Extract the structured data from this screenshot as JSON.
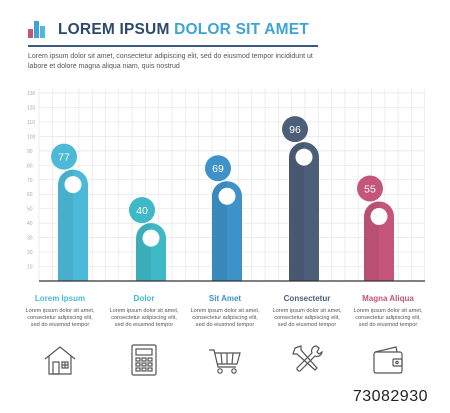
{
  "header": {
    "title_part1": "LOREM IPSUM",
    "title_part2": "DOLOR SIT AMET",
    "intro": "Lorem ipsum dolor sit amet, consectetur adipiscing elit, sed do eiusmod tempor incididunt ut labore et dolore magna aliqua niam, quis nostrud",
    "logo_icon": "bar-chart-logo-icon"
  },
  "colors": {
    "title_dark": "#2d4a6a",
    "title_light": "#3fa3d6",
    "c1": "#4cb9d9",
    "c2": "#3fb8c7",
    "c3": "#3d92c9",
    "c4": "#4d5e79",
    "c5": "#c4557b",
    "grid": "#e6e6e6",
    "icon": "#555555"
  },
  "chart_data": {
    "type": "bar",
    "categories": [
      "Lorem Ipsum",
      "Dolor",
      "Sit Amet",
      "Consectetur",
      "Magna Aliqua"
    ],
    "values": [
      77,
      40,
      69,
      96,
      55
    ],
    "ylim": [
      0,
      130
    ],
    "yticks": [
      0,
      10,
      20,
      30,
      40,
      50,
      60,
      70,
      80,
      90,
      100,
      110,
      120,
      130
    ],
    "grid": true,
    "bar_style": "rounded pills with value bubbles"
  },
  "cards": [
    {
      "title": "Lorem Ipsum",
      "text": "Lorem ipsum dolor sit amet, consectetur adipiscing elit, sed do eiusmod tempor",
      "icon": "house-icon"
    },
    {
      "title": "Dolor",
      "text": "Lorem ipsum dolor sit amet, consectetur adipiscing elit, sed do eiusmod tempor",
      "icon": "calculator-icon"
    },
    {
      "title": "Sit Amet",
      "text": "Lorem ipsum dolor sit amet, consectetur adipiscing elit, sed do eiusmod tempor",
      "icon": "shopping-cart-icon"
    },
    {
      "title": "Consectetur",
      "text": "Lorem ipsum dolor sit amet, consectetur adipiscing elit, sed do eiusmod tempor",
      "icon": "tools-icon"
    },
    {
      "title": "Magna Aliqua",
      "text": "Lorem ipsum dolor sit amet, consectetur adipiscing elit, sed do eiusmod tempor",
      "icon": "wallet-icon"
    }
  ],
  "footer": {
    "image_id": "73082930"
  }
}
